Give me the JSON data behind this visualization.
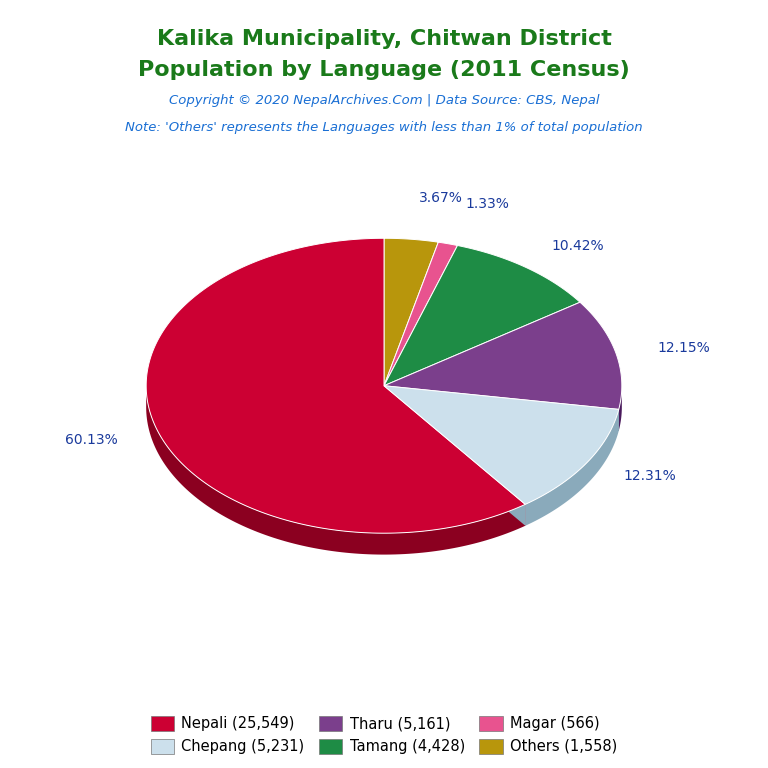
{
  "title_line1": "Kalika Municipality, Chitwan District",
  "title_line2": "Population by Language (2011 Census)",
  "copyright": "Copyright © 2020 NepalArchives.Com | Data Source: CBS, Nepal",
  "note": "Note: 'Others' represents the Languages with less than 1% of total population",
  "pie_values": [
    25549,
    5231,
    5161,
    4428,
    566,
    1558
  ],
  "pie_colors": [
    "#cc0033",
    "#cce0ec",
    "#7b3f8c",
    "#1e8c45",
    "#e8538f",
    "#b8960c"
  ],
  "pie_shadow_colors": [
    "#8b0020",
    "#8aaabb",
    "#4a1a5c",
    "#0d5c2a",
    "#a02060",
    "#7a6008"
  ],
  "legend_labels": [
    "Nepali (25,549)",
    "Chepang (5,231)",
    "Tharu (5,161)",
    "Tamang (4,428)",
    "Magar (566)",
    "Others (1,558)"
  ],
  "pct_labels": [
    "60.13%",
    "12.31%",
    "12.15%",
    "10.42%",
    "1.33%",
    "3.67%"
  ],
  "title_color": "#1a7a1a",
  "copyright_color": "#1a6fd4",
  "note_color": "#1a6fd4",
  "pct_color": "#1a3a9c",
  "figsize": [
    7.68,
    7.68
  ],
  "dpi": 100,
  "yscale": 0.62,
  "depth": 0.09,
  "startangle": 90
}
